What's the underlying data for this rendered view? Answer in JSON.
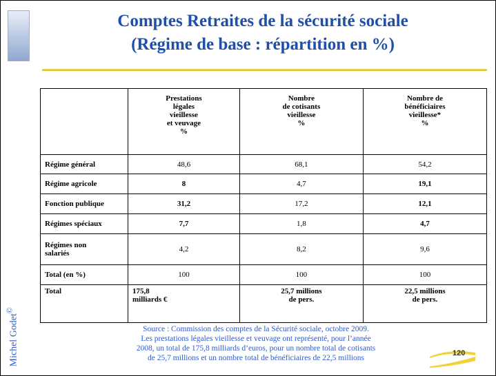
{
  "header": {
    "title": [
      "Comptes Retraites  de la sécurité sociale",
      "(Régime de base  : répartition en %)"
    ]
  },
  "table": {
    "columns": [
      "",
      "Prestations\nlégales\nvieillesse\net veuvage\n%",
      "Nombre\nde cotisants\nvieillesse\n%",
      "Nombre de\nbénéficiaires\nvieillesse*\n%"
    ],
    "rows": [
      [
        "Régime général",
        "48,6",
        "68,1",
        "54,2"
      ],
      [
        "Régime agricole",
        "8",
        "4,7",
        "19,1"
      ],
      [
        "Fonction publique",
        "31,2",
        "17,2",
        "12,1"
      ],
      [
        "Régimes spéciaux",
        "7,7",
        "1,8",
        "4,7"
      ],
      [
        "Régimes  non\nsalariés",
        "4,2",
        "8,2",
        "9,6"
      ],
      [
        "Total (en %)",
        "100",
        "100",
        "100"
      ],
      [
        "Total",
        "175,8\nmilliards €",
        "25,7 millions\nde pers.",
        "22,5 millions\nde pers."
      ]
    ]
  },
  "source": [
    "Source : Commission des comptes de la Sécurité sociale, octobre 2009.",
    "Les prestations légales vieillesse et veuvage ont représenté, pour l’année",
    "2008, un total de 175,8 milliards d’euros, pour un nombre total de cotisants",
    "de 25,7 millions et un nombre total de bénéficiaires de 22,5 millions"
  ],
  "footer": {
    "author": "Michel Godet",
    "copyright": "©",
    "page": "120"
  }
}
